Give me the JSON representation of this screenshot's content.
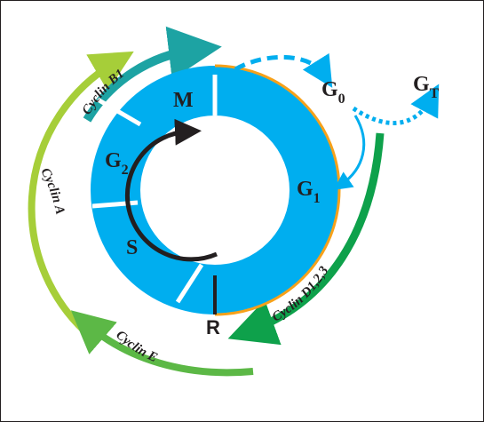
{
  "phases": {
    "m": "M",
    "g2": "G",
    "g2_sub": "2",
    "s": "S",
    "g1": "G",
    "g1_sub": "1",
    "g0": "G",
    "g0_sub": "0",
    "gt": "G",
    "gt_sub": "T",
    "r": "R"
  },
  "cyclins": {
    "b1": "Cyclin B1",
    "a": "Cyclin A",
    "e": "Cyclin E",
    "d": "Cyclin D1,2,3"
  },
  "colors": {
    "ring": "#00aeef",
    "cycle_arrow": "#231f20",
    "cyclin_b1": "#1da3a3",
    "cyclin_a": "#a6ce39",
    "cyclin_e": "#5cb846",
    "cyclin_d": "#0ea14b",
    "g1_edge": "#f7a11a"
  }
}
